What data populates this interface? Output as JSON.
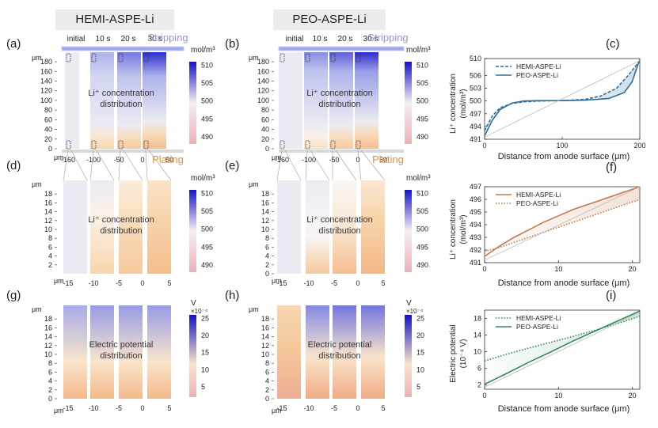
{
  "headers": [
    "HEMI-ASPE-Li",
    "PEO-ASPE-Li"
  ],
  "chart_data": [
    {
      "panel": "(a)",
      "type": "heatmap",
      "columns": [
        "initial",
        "10 s",
        "20 s",
        "30 s"
      ],
      "annotation": "Stripping",
      "center_label": [
        "Li⁺ concentration",
        "distribution"
      ],
      "x": {
        "unit": "μm",
        "ticks": [
          "-160",
          "-100",
          "-50",
          "0",
          "50"
        ]
      },
      "y": {
        "unit": "μm",
        "ticks": [
          "0",
          "20",
          "40",
          "60",
          "80",
          "100",
          "120",
          "140",
          "160",
          "180"
        ],
        "range": [
          0,
          190
        ]
      },
      "colorbar": {
        "unit": "mol/m³",
        "ticks": [
          "490",
          "495",
          "500",
          "505",
          "510"
        ],
        "range": [
          488,
          511
        ]
      },
      "distributions": [
        {
          "column": "initial",
          "stops": [
            [
              0,
              500
            ],
            [
              1,
              500
            ]
          ]
        },
        {
          "column": "10 s",
          "stops": [
            [
              0,
              495
            ],
            [
              0.12,
              497
            ],
            [
              0.25,
              500
            ],
            [
              0.75,
              502
            ],
            [
              1,
              504
            ]
          ]
        },
        {
          "column": "20 s",
          "stops": [
            [
              0,
              494
            ],
            [
              0.12,
              496
            ],
            [
              0.25,
              500
            ],
            [
              0.75,
              503
            ],
            [
              1,
              507
            ]
          ]
        },
        {
          "column": "30 s",
          "stops": [
            [
              0,
              493
            ],
            [
              0.15,
              495.5
            ],
            [
              0.28,
              500
            ],
            [
              0.75,
              504
            ],
            [
              1,
              510
            ]
          ]
        }
      ]
    },
    {
      "panel": "(b)",
      "type": "heatmap",
      "columns": [
        "initial",
        "10 s",
        "20 s",
        "30 s"
      ],
      "annotation": "Stripping",
      "center_label": [
        "Li⁺ concentration",
        "distribution"
      ],
      "x": {
        "unit": "μm",
        "ticks": [
          "-160",
          "-100",
          "-50",
          "0",
          "50"
        ]
      },
      "y": {
        "unit": "μm",
        "ticks": [
          "0",
          "20",
          "40",
          "60",
          "80",
          "100",
          "120",
          "140",
          "160",
          "180"
        ],
        "range": [
          0,
          190
        ]
      },
      "colorbar": {
        "unit": "mol/m³",
        "ticks": [
          "490",
          "495",
          "500",
          "505",
          "510"
        ],
        "range": [
          488,
          511
        ]
      },
      "distributions": [
        {
          "column": "initial",
          "stops": [
            [
              0,
              500
            ],
            [
              1,
              500
            ]
          ]
        },
        {
          "column": "10 s",
          "stops": [
            [
              0,
              496
            ],
            [
              0.12,
              498
            ],
            [
              0.25,
              500
            ],
            [
              0.8,
              503
            ],
            [
              1,
              506
            ]
          ]
        },
        {
          "column": "20 s",
          "stops": [
            [
              0,
              494
            ],
            [
              0.12,
              496
            ],
            [
              0.25,
              500
            ],
            [
              0.8,
              504
            ],
            [
              1,
              508
            ]
          ]
        },
        {
          "column": "30 s",
          "stops": [
            [
              0,
              493
            ],
            [
              0.15,
              495.5
            ],
            [
              0.28,
              500
            ],
            [
              0.8,
              505
            ],
            [
              1,
              510
            ]
          ]
        }
      ]
    },
    {
      "panel": "(c)",
      "type": "line",
      "xlabel": "Distance from anode surface (μm)",
      "ylabel": [
        "Li⁺ concentration",
        "(mol/m³)"
      ],
      "xlim": [
        0,
        200
      ],
      "ylim": [
        491,
        510
      ],
      "xticks": [
        0,
        100,
        200
      ],
      "yticks": [
        491,
        494,
        497,
        500,
        503,
        506,
        510
      ],
      "legend": "top-left",
      "series": [
        {
          "name": "HEMI-ASPE-Li",
          "style": "dashed",
          "color": "#2d6f9a",
          "x": [
            0,
            10,
            20,
            35,
            50,
            70,
            100,
            130,
            150,
            170,
            185,
            200
          ],
          "y": [
            493,
            496.5,
            498.4,
            499.4,
            499.8,
            500,
            500.1,
            500.4,
            501.2,
            503,
            506,
            509.5
          ]
        },
        {
          "name": "PEO-ASPE-Li",
          "style": "solid",
          "color": "#2d6f9a",
          "x": [
            0,
            10,
            20,
            35,
            50,
            70,
            100,
            130,
            160,
            180,
            190,
            200
          ],
          "y": [
            491.8,
            495.5,
            498,
            499.5,
            500,
            500.1,
            500.1,
            500.2,
            500.6,
            502,
            504.5,
            509.8
          ]
        },
        {
          "name": "",
          "style": "thin",
          "color": "#bbbbbb",
          "x": [
            0,
            200
          ],
          "y": [
            491.5,
            509.5
          ]
        }
      ]
    },
    {
      "panel": "(d)",
      "type": "heatmap",
      "annotation": "Plating",
      "center_label": [
        "Li⁺ concentration",
        "distribution"
      ],
      "x": {
        "unit": "μm",
        "ticks": [
          "-15",
          "-10",
          "-5",
          "0",
          "5"
        ]
      },
      "y": {
        "unit": "μm",
        "ticks": [
          "2",
          "4",
          "6",
          "8",
          "10",
          "12",
          "14",
          "16",
          "18"
        ],
        "range": [
          0,
          20
        ]
      },
      "colorbar": {
        "unit": "mol/m³",
        "ticks": [
          "490",
          "495",
          "500",
          "505",
          "510"
        ],
        "range": [
          488,
          511
        ]
      },
      "distributions": [
        {
          "column": "initial",
          "stops": [
            [
              0,
              500
            ],
            [
              1,
              500
            ]
          ]
        },
        {
          "column": "10 s",
          "stops": [
            [
              0,
              495
            ],
            [
              0.6,
              498
            ],
            [
              1,
              500
            ]
          ]
        },
        {
          "column": "20 s",
          "stops": [
            [
              0,
              494
            ],
            [
              0.6,
              496
            ],
            [
              1,
              497.5
            ]
          ]
        },
        {
          "column": "30 s",
          "stops": [
            [
              0,
              493
            ],
            [
              0.6,
              495
            ],
            [
              1,
              496.5
            ]
          ]
        }
      ]
    },
    {
      "panel": "(e)",
      "type": "heatmap",
      "annotation": "Plating",
      "center_label": [
        "Li⁺ concentration",
        "distribution"
      ],
      "x": {
        "unit": "μm",
        "ticks": [
          "-15",
          "-10",
          "-5",
          "0",
          "5"
        ]
      },
      "y": {
        "unit": "μm",
        "ticks": [
          "0",
          "2",
          "4",
          "6",
          "8",
          "10",
          "12",
          "14",
          "16",
          "18"
        ],
        "range": [
          0,
          20
        ]
      },
      "colorbar": {
        "unit": "mol/m³",
        "ticks": [
          "490",
          "495",
          "500",
          "505",
          "510"
        ],
        "range": [
          488,
          511
        ]
      },
      "distributions": [
        {
          "column": "initial",
          "stops": [
            [
              0,
              500
            ],
            [
              1,
              500
            ]
          ]
        },
        {
          "column": "10 s",
          "stops": [
            [
              0,
              494
            ],
            [
              0.4,
              499
            ],
            [
              1,
              500
            ]
          ]
        },
        {
          "column": "20 s",
          "stops": [
            [
              0,
              493
            ],
            [
              0.5,
              497
            ],
            [
              1,
              499
            ]
          ]
        },
        {
          "column": "30 s",
          "stops": [
            [
              0,
              492.5
            ],
            [
              0.6,
              495
            ],
            [
              1,
              497
            ]
          ]
        }
      ]
    },
    {
      "panel": "(f)",
      "type": "line",
      "xlabel": "Distance from anode surface (μm)",
      "ylabel": [
        "Li⁺ concentration",
        "(mol/m³)"
      ],
      "xlim": [
        0,
        21
      ],
      "ylim": [
        491,
        497
      ],
      "xticks": [
        0,
        10,
        20
      ],
      "yticks": [
        491,
        492,
        493,
        494,
        495,
        496,
        497
      ],
      "legend": "top-left",
      "series": [
        {
          "name": "HEMI-ASPE-Li",
          "style": "solid",
          "color": "#c8774a",
          "x": [
            0,
            2,
            4,
            6,
            8,
            10,
            12,
            14,
            16,
            18,
            20,
            21
          ],
          "y": [
            491.5,
            492.3,
            493.0,
            493.6,
            494.2,
            494.7,
            495.2,
            495.6,
            496.0,
            496.4,
            496.8,
            497.0
          ]
        },
        {
          "name": "PEO-ASPE-Li",
          "style": "dotted",
          "color": "#c8774a",
          "x": [
            0,
            2,
            4,
            6,
            8,
            10,
            12,
            14,
            16,
            18,
            20,
            21
          ],
          "y": [
            491.9,
            492.2,
            492.6,
            493.0,
            493.4,
            493.8,
            494.2,
            494.6,
            495.0,
            495.4,
            495.8,
            496.0
          ]
        },
        {
          "name": "",
          "style": "thin",
          "color": "#bbbbbb",
          "x": [
            0,
            21
          ],
          "y": [
            491.2,
            497
          ]
        }
      ]
    },
    {
      "panel": "(g)",
      "type": "heatmap",
      "center_label": [
        "Electric potential",
        "distribution"
      ],
      "x": {
        "unit": "μm",
        "ticks": [
          "-15",
          "-10",
          "-5",
          "0",
          "5"
        ]
      },
      "y": {
        "unit": "μm",
        "ticks": [
          "0",
          "2",
          "4",
          "6",
          "8",
          "10",
          "12",
          "14",
          "16",
          "18"
        ],
        "range": [
          0,
          20
        ]
      },
      "colorbar": {
        "unit": "V",
        "multiplier": "×10⁻⁴",
        "ticks": [
          "5",
          "10",
          "15",
          "20",
          "25"
        ],
        "range": [
          2,
          26
        ]
      },
      "distributions": [
        {
          "column": "initial",
          "stops": [
            [
              0,
              7
            ],
            [
              0.4,
              11
            ],
            [
              1,
              19
            ]
          ]
        },
        {
          "column": "10 s",
          "stops": [
            [
              0,
              7
            ],
            [
              0.4,
              11
            ],
            [
              1,
              20
            ]
          ]
        },
        {
          "column": "20 s",
          "stops": [
            [
              0,
              7
            ],
            [
              0.4,
              11
            ],
            [
              1,
              20
            ]
          ]
        },
        {
          "column": "30 s",
          "stops": [
            [
              0,
              7
            ],
            [
              0.4,
              11
            ],
            [
              1,
              20
            ]
          ]
        }
      ]
    },
    {
      "panel": "(h)",
      "type": "heatmap",
      "center_label": [
        "Electric potential",
        "distribution"
      ],
      "x": {
        "unit": "μm",
        "ticks": [
          "-15",
          "-10",
          "-5",
          "0",
          "5"
        ]
      },
      "y": {
        "unit": "μm",
        "ticks": [
          "0",
          "2",
          "4",
          "6",
          "8",
          "10",
          "12",
          "14",
          "16",
          "18"
        ],
        "range": [
          0,
          20
        ]
      },
      "colorbar": {
        "unit": "V",
        "multiplier": "×10⁻⁴",
        "ticks": [
          "5",
          "10",
          "15",
          "20",
          "25"
        ],
        "range": [
          2,
          26
        ]
      },
      "distributions": [
        {
          "column": "initial",
          "stops": [
            [
              0,
              4
            ],
            [
              0.5,
              8
            ],
            [
              1,
              9.5
            ]
          ]
        },
        {
          "column": "10 s",
          "stops": [
            [
              0,
              5
            ],
            [
              0.45,
              11
            ],
            [
              1,
              21
            ]
          ]
        },
        {
          "column": "20 s",
          "stops": [
            [
              0,
              5
            ],
            [
              0.45,
              11
            ],
            [
              1,
              22
            ]
          ]
        },
        {
          "column": "30 s",
          "stops": [
            [
              0,
              5
            ],
            [
              0.45,
              11
            ],
            [
              1,
              22
            ]
          ]
        }
      ]
    },
    {
      "panel": "(i)",
      "type": "line",
      "xlabel": "Distance from anode surface (μm)",
      "ylabel": [
        "Electric potential",
        "(10⁻⁴ V)"
      ],
      "xlim": [
        0,
        21
      ],
      "ylim": [
        1,
        20
      ],
      "xticks": [
        0,
        10,
        20
      ],
      "yticks": [
        2,
        6,
        10,
        14,
        18
      ],
      "legend": "top-left",
      "series": [
        {
          "name": "HEMI-ASPE-Li",
          "style": "dotted",
          "color": "#2f8a57",
          "x": [
            0,
            3,
            6,
            9,
            12,
            15,
            18,
            21
          ],
          "y": [
            7.8,
            9.4,
            10.9,
            12.3,
            13.7,
            15.2,
            16.8,
            18.5
          ]
        },
        {
          "name": "PEO-ASPE-Li",
          "style": "solid",
          "color": "#2f8a57",
          "x": [
            0,
            3,
            6,
            9,
            12,
            15,
            18,
            21
          ],
          "y": [
            2.2,
            4.8,
            7.5,
            10,
            12.6,
            15,
            17.4,
            19.8
          ]
        },
        {
          "name": "",
          "style": "thin",
          "color": "#bbbbbb",
          "x": [
            0,
            21
          ],
          "y": [
            1.5,
            19.5
          ]
        }
      ]
    }
  ]
}
